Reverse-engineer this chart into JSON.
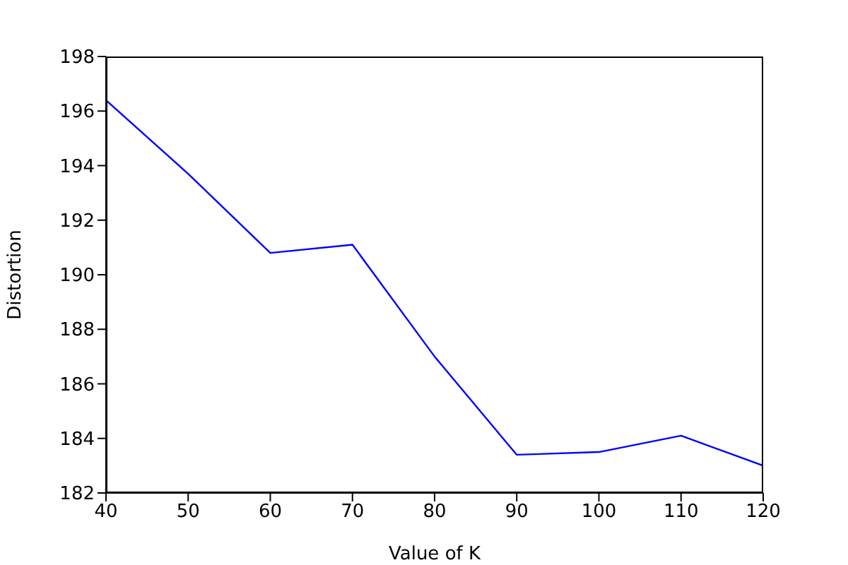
{
  "chart_data": {
    "type": "line",
    "xlabel": "Value of K",
    "ylabel": "Distortion",
    "x": [
      40,
      50,
      60,
      70,
      80,
      90,
      100,
      110,
      120
    ],
    "series": [
      {
        "color": "#0000ff",
        "values": [
          196.4,
          193.7,
          190.8,
          191.1,
          187.0,
          183.4,
          183.5,
          184.1,
          183.0
        ]
      }
    ],
    "xlim": [
      40,
      120
    ],
    "xticks": [
      40,
      50,
      60,
      70,
      80,
      90,
      100,
      110,
      120
    ],
    "ylim": [
      182,
      198
    ],
    "yticks": [
      182,
      184,
      186,
      188,
      190,
      192,
      194,
      196,
      198
    ],
    "grid": false,
    "legend": false,
    "marker": "none",
    "line_style": "solid"
  }
}
